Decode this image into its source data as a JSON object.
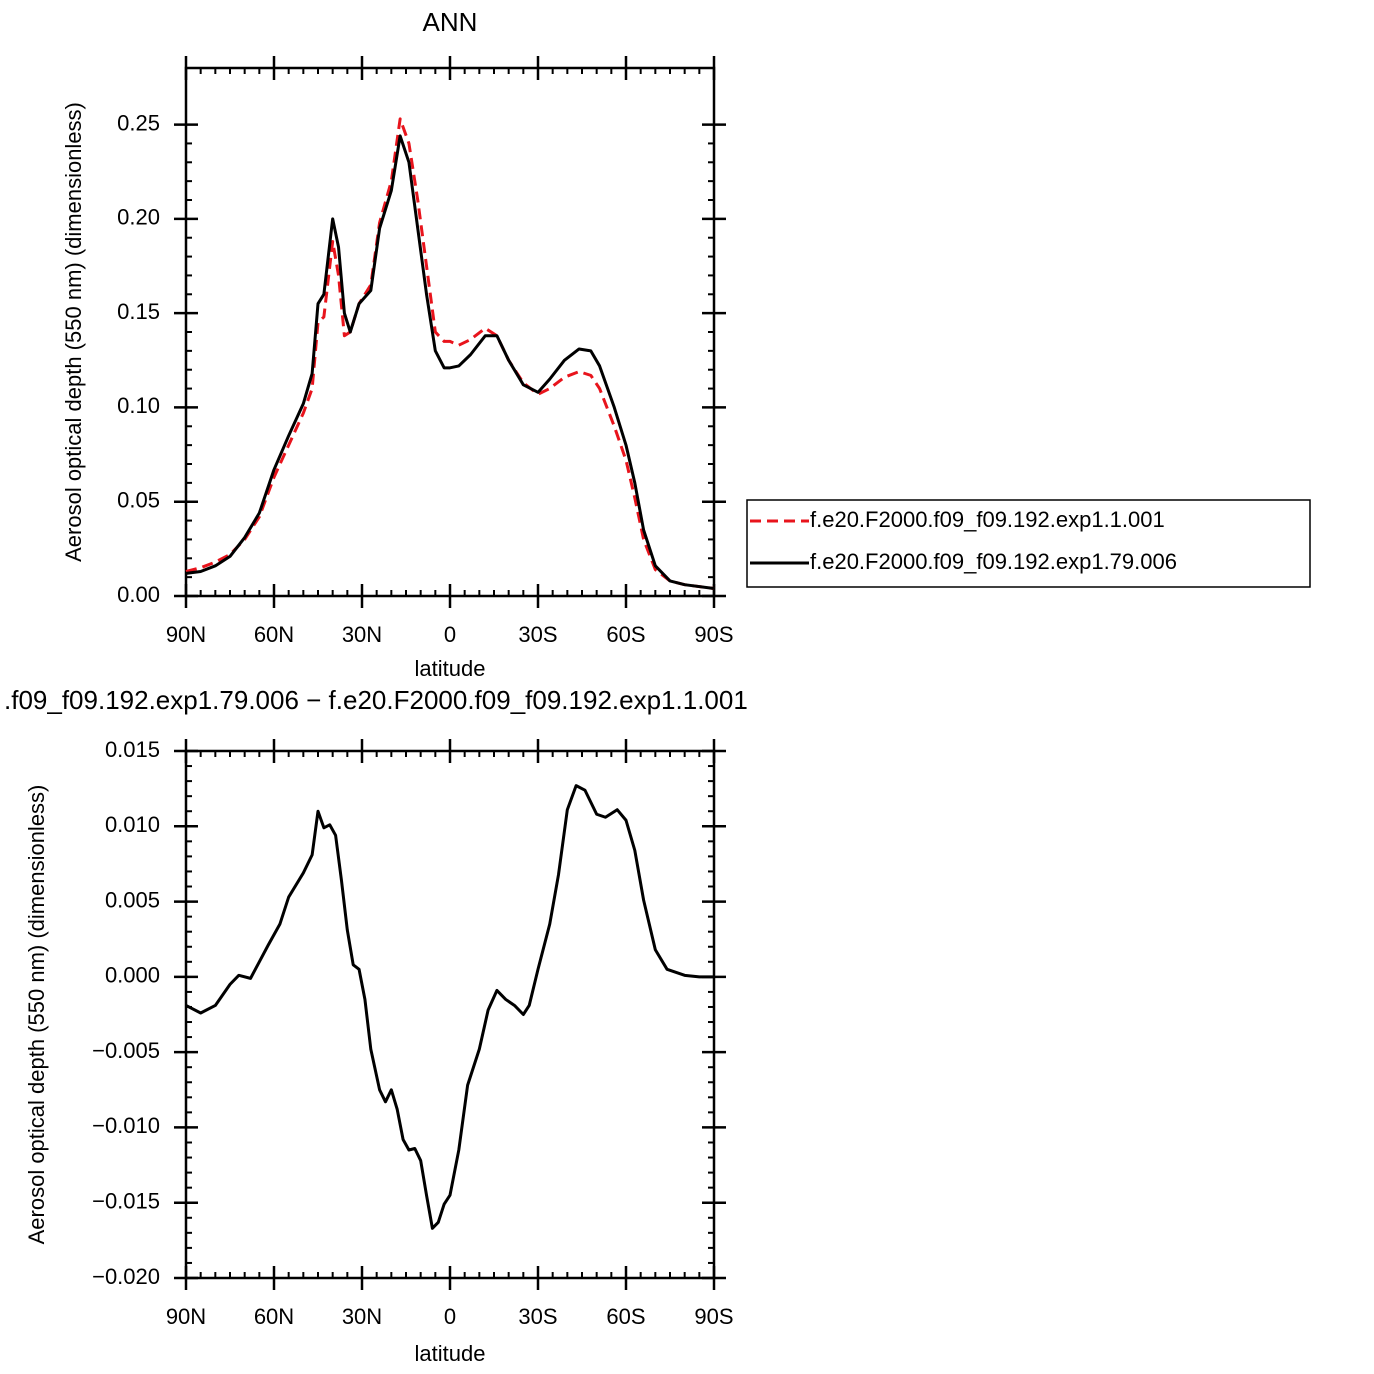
{
  "chart_data": [
    {
      "type": "line",
      "title": "ANN",
      "xlabel": "latitude",
      "ylabel": "Aerosol optical depth (550 nm) (dimensionless)",
      "x": [
        90,
        85,
        80,
        75,
        70,
        65,
        60,
        55,
        50,
        47,
        45,
        43,
        40,
        38,
        36,
        34,
        31,
        27,
        24,
        20,
        17,
        14,
        11,
        8,
        5,
        2,
        0,
        -3,
        -7,
        -12,
        -16,
        -20,
        -25,
        -30,
        -34,
        -39,
        -44,
        -48,
        -51,
        -56,
        -60,
        -63,
        -66,
        -70,
        -75,
        -80,
        -90
      ],
      "series": [
        {
          "name": "f.e20.F2000.f09_f09.192.exp1.1.001",
          "color": "#e8141c",
          "linestyle": "dashed",
          "values": [
            0.013,
            0.015,
            0.018,
            0.022,
            0.03,
            0.042,
            0.063,
            0.08,
            0.097,
            0.11,
            0.145,
            0.148,
            0.188,
            0.17,
            0.138,
            0.14,
            0.155,
            0.165,
            0.198,
            0.22,
            0.253,
            0.24,
            0.21,
            0.175,
            0.14,
            0.135,
            0.135,
            0.133,
            0.136,
            0.142,
            0.138,
            0.125,
            0.113,
            0.107,
            0.11,
            0.116,
            0.119,
            0.117,
            0.11,
            0.09,
            0.072,
            0.052,
            0.03,
            0.014,
            0.008,
            0.006,
            0.004
          ]
        },
        {
          "name": "f.e20.F2000.f09_f09.192.exp1.79.006",
          "color": "#000000",
          "linestyle": "solid",
          "values": [
            0.012,
            0.013,
            0.016,
            0.021,
            0.031,
            0.044,
            0.067,
            0.085,
            0.102,
            0.118,
            0.155,
            0.16,
            0.2,
            0.185,
            0.15,
            0.14,
            0.155,
            0.162,
            0.195,
            0.215,
            0.244,
            0.23,
            0.195,
            0.16,
            0.13,
            0.121,
            0.121,
            0.122,
            0.128,
            0.138,
            0.138,
            0.125,
            0.112,
            0.108,
            0.115,
            0.125,
            0.131,
            0.13,
            0.122,
            0.1,
            0.08,
            0.06,
            0.035,
            0.016,
            0.008,
            0.006,
            0.004
          ]
        }
      ],
      "xlim": [
        90,
        -90
      ],
      "xticks": [
        {
          "value": 90,
          "label": "90N"
        },
        {
          "value": 60,
          "label": "60N"
        },
        {
          "value": 30,
          "label": "30N"
        },
        0,
        {
          "value": -30,
          "label": "30S"
        },
        {
          "value": -60,
          "label": "60S"
        },
        {
          "value": -90,
          "label": "90S"
        }
      ],
      "ylim": [
        0,
        0.28
      ],
      "yticks": [
        {
          "value": 0,
          "label": "0.00"
        },
        {
          "value": 0.05,
          "label": "0.05"
        },
        {
          "value": 0.1,
          "label": "0.10"
        },
        {
          "value": 0.15,
          "label": "0.15"
        },
        {
          "value": 0.2,
          "label": "0.20"
        },
        {
          "value": 0.25,
          "label": "0.25"
        }
      ],
      "legend": "right"
    },
    {
      "type": "line",
      "title": ".f09_f09.192.exp1.79.006 − f.e20.F2000.f09_f09.192.exp1.1.001",
      "xlabel": "latitude",
      "ylabel": "Aerosol optical depth (550 nm) (dimensionless)",
      "x": [
        90,
        85,
        80,
        75,
        72,
        68,
        65,
        62,
        58,
        55,
        50,
        47,
        45,
        43,
        41,
        39,
        37,
        35,
        33,
        31,
        29,
        27,
        24,
        22,
        20,
        18,
        16,
        14,
        12,
        10,
        8,
        6,
        4,
        2,
        0,
        -3,
        -6,
        -10,
        -13,
        -16,
        -19,
        -22,
        -25,
        -27,
        -30,
        -34,
        -37,
        -40,
        -43,
        -46,
        -50,
        -53,
        -57,
        -60,
        -63,
        -66,
        -70,
        -74,
        -80,
        -85,
        -90
      ],
      "series": [
        {
          "color": "#000000",
          "linestyle": "solid",
          "values": [
            -0.0019,
            -0.0024,
            -0.0019,
            -0.0005,
            0.0001,
            -0.0001,
            0.001,
            0.0021,
            0.0035,
            0.0053,
            0.0069,
            0.0081,
            0.011,
            0.0099,
            0.0101,
            0.0094,
            0.0064,
            0.0031,
            0.0008,
            0.0005,
            -0.0015,
            -0.0048,
            -0.0075,
            -0.0083,
            -0.0075,
            -0.0088,
            -0.0108,
            -0.0115,
            -0.0114,
            -0.0122,
            -0.0145,
            -0.0167,
            -0.0163,
            -0.0151,
            -0.0145,
            -0.0115,
            -0.0072,
            -0.0048,
            -0.0022,
            -0.0009,
            -0.0015,
            -0.0019,
            -0.0025,
            -0.0019,
            0.0005,
            0.0035,
            0.0068,
            0.0111,
            0.0127,
            0.0124,
            0.0108,
            0.0106,
            0.0111,
            0.0104,
            0.0084,
            0.0051,
            0.0018,
            0.0005,
            0.0001,
            0,
            0
          ]
        }
      ],
      "xlim": [
        90,
        -90
      ],
      "xticks": [
        {
          "value": 90,
          "label": "90N"
        },
        {
          "value": 60,
          "label": "60N"
        },
        {
          "value": 30,
          "label": "30N"
        },
        0,
        {
          "value": -30,
          "label": "30S"
        },
        {
          "value": -60,
          "label": "60S"
        },
        {
          "value": -90,
          "label": "90S"
        }
      ],
      "ylim": [
        -0.02,
        0.015
      ],
      "yticks": [
        {
          "value": -0.02,
          "label": "−0.020"
        },
        {
          "value": -0.015,
          "label": "−0.015"
        },
        {
          "value": -0.01,
          "label": "−0.010"
        },
        {
          "value": -0.005,
          "label": "−0.005"
        },
        {
          "value": 0,
          "label": "0.000"
        },
        {
          "value": 0.005,
          "label": "0.005"
        },
        {
          "value": 0.01,
          "label": "0.010"
        },
        {
          "value": 0.015,
          "label": "0.015"
        }
      ]
    }
  ]
}
